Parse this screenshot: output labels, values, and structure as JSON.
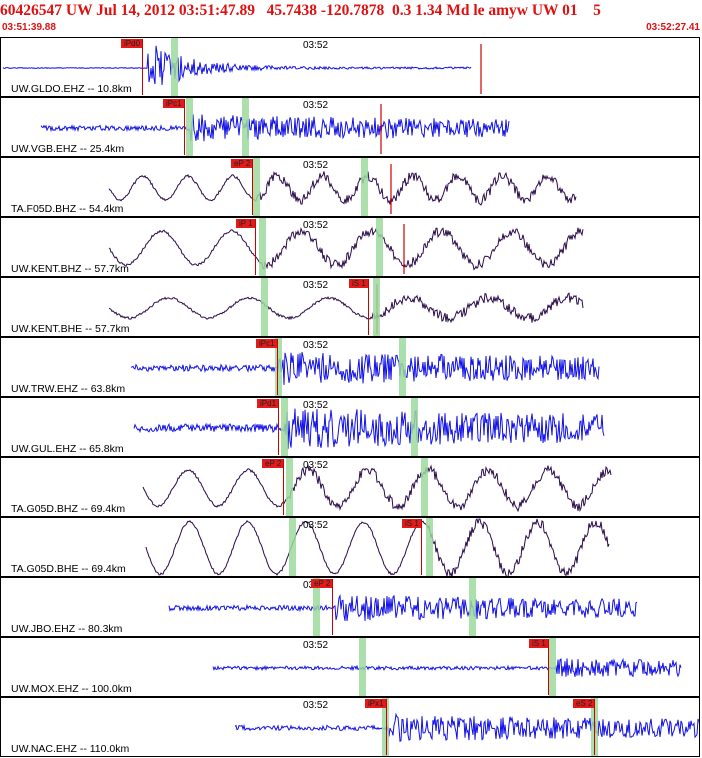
{
  "header": {
    "title": "60426547 UW Jul 14, 2012 03:51:47.89   45.7438 -120.7878  0.3 1.34 Md le amyw UW 01    5",
    "start_time": "03:51:39.88",
    "end_time": "03:52:27.41"
  },
  "colors": {
    "header_red": "#e01010",
    "pick_red": "#e21a1a",
    "trace_blue": "#1010e8",
    "trace_dark": "#2a0a4a",
    "marker_green": "#9cd99c"
  },
  "panels": [
    {
      "station": "UW.GLDO.EHZ -- 10.8km",
      "minute": "03:52",
      "pick": "iPd0",
      "color": "#1010e8"
    },
    {
      "station": "UW.VGB.EHZ -- 25.4km",
      "minute": "03:52",
      "pick": "iPc1",
      "color": "#1010e8"
    },
    {
      "station": "TA.F05D.BHZ -- 54.4km",
      "minute": "03:52",
      "pick": "eP 2",
      "color": "#2a0a4a"
    },
    {
      "station": "UW.KENT.BHZ -- 57.7km",
      "minute": "03:52",
      "pick": "iP 1",
      "color": "#2a0a4a"
    },
    {
      "station": "UW.KENT.BHE -- 57.7km",
      "minute": "03:52",
      "pick": "iS 1",
      "color": "#2a0a4a"
    },
    {
      "station": "UW.TRW.EHZ -- 63.8km",
      "minute": "03:52",
      "pick": "iPc1",
      "color": "#1010e8"
    },
    {
      "station": "UW.GUL.EHZ -- 65.8km",
      "minute": "03:52",
      "pick": "iPd1",
      "color": "#1010e8"
    },
    {
      "station": "TA.G05D.BHZ -- 69.4km",
      "minute": "03:52",
      "pick": "eP 2",
      "color": "#2a0a4a"
    },
    {
      "station": "TA.G05D.BHE -- 69.4km",
      "minute": "03:52",
      "pick": "iS 1",
      "color": "#2a0a4a"
    },
    {
      "station": "UW.JBO.EHZ -- 80.3km",
      "minute": "03:52",
      "pick": "eP 2",
      "color": "#1010e8"
    },
    {
      "station": "UW.MOX.EHZ -- 100.0km",
      "minute": "03:52",
      "pick": "iS 1",
      "color": "#1010e8"
    },
    {
      "station": "UW.NAC.EHZ -- 110.0km",
      "minute": "03:52",
      "pick": "iPx1",
      "pick2": "eS 2",
      "color": "#1010e8"
    }
  ]
}
